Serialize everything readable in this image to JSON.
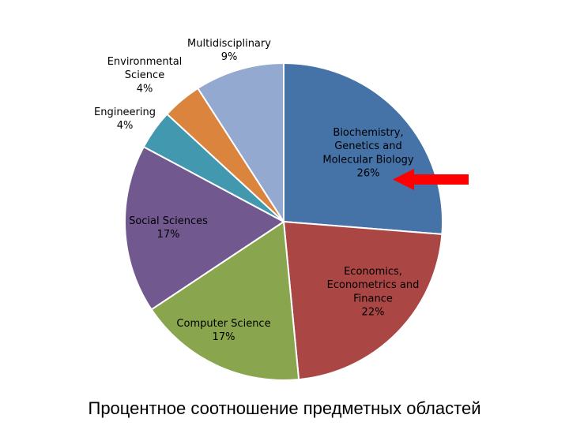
{
  "caption": "Процентное соотношение предметных областей",
  "chart_data": {
    "type": "pie",
    "title": "",
    "legend": "none",
    "unit": "%",
    "slices": [
      {
        "label": [
          "Biochemistry,",
          "Genetics and",
          "Molecular Biology"
        ],
        "value": 26,
        "value_label": "26%",
        "color": "#4572A7"
      },
      {
        "label": [
          "Economics,",
          "Econometrics and",
          "Finance"
        ],
        "value": 22,
        "value_label": "22%",
        "color": "#AA4643"
      },
      {
        "label": [
          "Computer Science"
        ],
        "value": 17,
        "value_label": "17%",
        "color": "#89A54E"
      },
      {
        "label": [
          "Social Sciences"
        ],
        "value": 17,
        "value_label": "17%",
        "color": "#71588F"
      },
      {
        "label": [
          "Engineering"
        ],
        "value": 4,
        "value_label": "4%",
        "color": "#4198AF"
      },
      {
        "label": [
          "Environmental",
          "Science"
        ],
        "value": 4,
        "value_label": "4%",
        "color": "#DB843D"
      },
      {
        "label": [
          "Multidisciplinary"
        ],
        "value": 9,
        "value_label": "9%",
        "color": "#93A9CF"
      }
    ],
    "highlight": {
      "slice": 0,
      "marker": "arrow-pointing-left",
      "color": "#FF0000"
    }
  }
}
